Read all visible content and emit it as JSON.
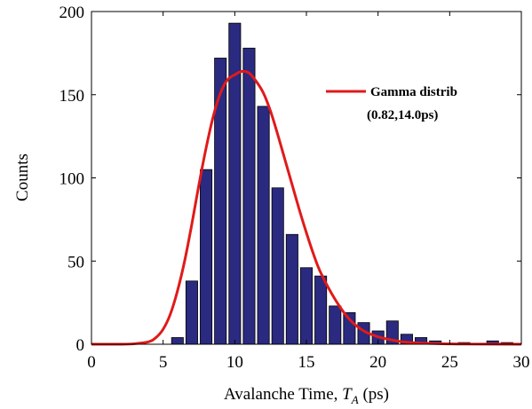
{
  "chart_data": {
    "type": "bar",
    "xlabel": "Avalanche Time, ",
    "xlabel_symbol": "T",
    "xlabel_subscript": "A",
    "xlabel_unit": " (ps)",
    "ylabel": "Counts",
    "xlim": [
      0,
      30
    ],
    "ylim": [
      0,
      200
    ],
    "x_ticks": [
      "0",
      "5",
      "10",
      "15",
      "20",
      "25",
      "30"
    ],
    "y_ticks": [
      "0",
      "50",
      "100",
      "150",
      "200"
    ],
    "bar_color": "#2a2a80",
    "bar_edge_color": "#000000",
    "bins": {
      "x": [
        6,
        7,
        8,
        9,
        10,
        11,
        12,
        13,
        14,
        15,
        16,
        17,
        18,
        19,
        20,
        21,
        22,
        23,
        24,
        26,
        28,
        29
      ],
      "values": [
        4,
        38,
        105,
        172,
        193,
        178,
        143,
        94,
        66,
        46,
        41,
        23,
        19,
        13,
        8,
        14,
        6,
        4,
        2,
        1,
        2,
        1
      ]
    },
    "fit": {
      "name": "Gamma distrib",
      "params": "(0.82,14.0ps)",
      "color": "#e01a1a",
      "x": [
        0,
        2,
        3,
        4,
        4.5,
        5,
        5.5,
        6,
        6.5,
        7,
        7.5,
        8,
        8.5,
        9,
        9.5,
        10,
        10.5,
        11,
        11.5,
        12,
        12.5,
        13,
        13.5,
        14,
        14.5,
        15,
        15.5,
        16,
        17,
        18,
        19,
        20,
        21,
        22,
        24,
        26,
        30
      ],
      "y": [
        0,
        0,
        0.3,
        1.5,
        4,
        9,
        18,
        32,
        50,
        72,
        96,
        118,
        137,
        151,
        159,
        162,
        164,
        163,
        158,
        151,
        140,
        126,
        111,
        96,
        81,
        67,
        54,
        43,
        27,
        15,
        8,
        4.5,
        2.5,
        1.2,
        0.4,
        0.1,
        0
      ],
      "legend_position": "top-right"
    }
  }
}
